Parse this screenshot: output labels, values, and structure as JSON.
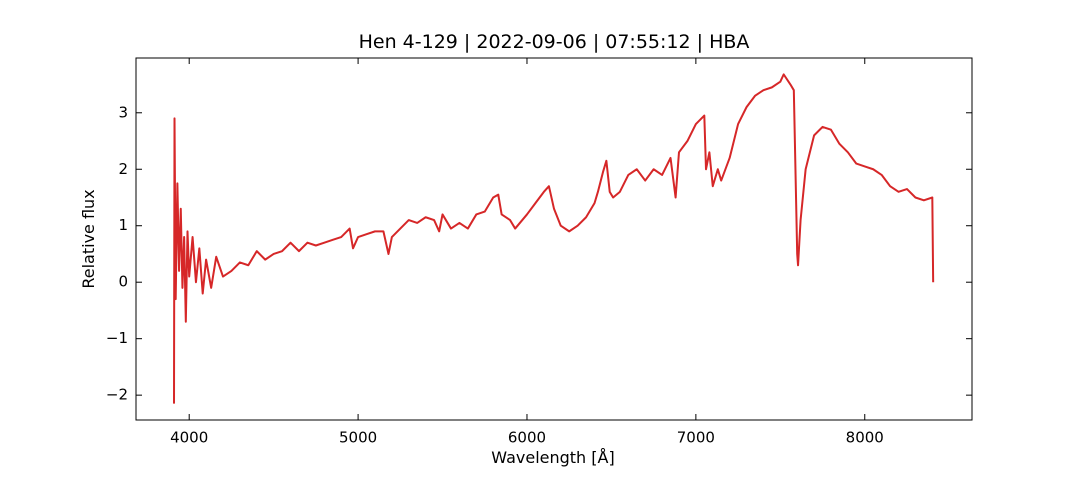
{
  "chart_data": {
    "type": "line",
    "title": "Hen 4-129 | 2022-09-06 | 07:55:12 | HBA",
    "x_label": "Wavelength [Å]",
    "y_label": "Relative flux",
    "xlim": [
      3685,
      8635
    ],
    "ylim": [
      -2.44,
      3.97
    ],
    "xticks": [
      4000,
      5000,
      6000,
      7000,
      8000
    ],
    "yticks": [
      {
        "value": -2,
        "label": "−2"
      },
      {
        "value": -1,
        "label": "−1"
      },
      0,
      1,
      2,
      3
    ],
    "series": [
      {
        "color": "#d62728",
        "x": [
          3910,
          3913,
          3920,
          3930,
          3940,
          3950,
          3960,
          3970,
          3980,
          3990,
          4000,
          4020,
          4040,
          4060,
          4080,
          4100,
          4130,
          4160,
          4200,
          4250,
          4300,
          4350,
          4400,
          4450,
          4500,
          4550,
          4600,
          4650,
          4700,
          4750,
          4800,
          4850,
          4900,
          4950,
          4970,
          5000,
          5050,
          5100,
          5150,
          5180,
          5200,
          5250,
          5300,
          5350,
          5400,
          5450,
          5480,
          5500,
          5550,
          5600,
          5650,
          5700,
          5750,
          5800,
          5830,
          5850,
          5900,
          5930,
          6000,
          6050,
          6100,
          6130,
          6160,
          6200,
          6250,
          6300,
          6350,
          6400,
          6420,
          6450,
          6470,
          6490,
          6510,
          6550,
          6600,
          6650,
          6700,
          6750,
          6800,
          6850,
          6880,
          6900,
          6950,
          7000,
          7050,
          7060,
          7080,
          7100,
          7130,
          7150,
          7200,
          7250,
          7300,
          7350,
          7400,
          7450,
          7500,
          7520,
          7560,
          7580,
          7600,
          7605,
          7620,
          7650,
          7700,
          7750,
          7800,
          7850,
          7900,
          7950,
          8000,
          8050,
          8100,
          8150,
          8200,
          8250,
          8300,
          8350,
          8400,
          8405
        ],
        "values": [
          -2.15,
          2.9,
          -0.3,
          1.75,
          0.2,
          1.3,
          -0.1,
          0.8,
          -0.7,
          0.9,
          0.1,
          0.8,
          0.0,
          0.6,
          -0.2,
          0.4,
          -0.1,
          0.45,
          0.1,
          0.2,
          0.35,
          0.3,
          0.55,
          0.4,
          0.5,
          0.55,
          0.7,
          0.55,
          0.7,
          0.65,
          0.7,
          0.75,
          0.8,
          0.95,
          0.6,
          0.8,
          0.85,
          0.9,
          0.9,
          0.5,
          0.8,
          0.95,
          1.1,
          1.05,
          1.15,
          1.1,
          0.9,
          1.2,
          0.95,
          1.05,
          0.95,
          1.2,
          1.25,
          1.5,
          1.55,
          1.2,
          1.1,
          0.95,
          1.2,
          1.4,
          1.6,
          1.7,
          1.3,
          1.0,
          0.9,
          1.0,
          1.15,
          1.4,
          1.6,
          1.95,
          2.15,
          1.6,
          1.5,
          1.6,
          1.9,
          2.0,
          1.8,
          2.0,
          1.9,
          2.2,
          1.5,
          2.3,
          2.5,
          2.8,
          2.95,
          2.0,
          2.3,
          1.7,
          2.0,
          1.8,
          2.2,
          2.8,
          3.1,
          3.3,
          3.4,
          3.45,
          3.55,
          3.68,
          3.5,
          3.4,
          0.5,
          0.3,
          1.1,
          2.0,
          2.6,
          2.75,
          2.7,
          2.45,
          2.3,
          2.1,
          2.05,
          2.0,
          1.9,
          1.7,
          1.6,
          1.65,
          1.5,
          1.45,
          1.5,
          0.0
        ]
      }
    ]
  }
}
